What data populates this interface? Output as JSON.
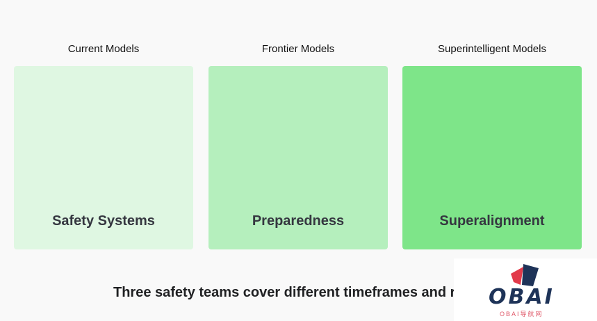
{
  "columns": [
    {
      "label": "Current Models",
      "team": "Safety Systems",
      "color": "#dff7e2"
    },
    {
      "label": "Frontier Models",
      "team": "Preparedness",
      "color": "#b5efbd"
    },
    {
      "label": "Superintelligent Models",
      "team": "Superalignment",
      "color": "#7ee589"
    }
  ],
  "caption": "Three safety teams cover different timeframes and r",
  "watermark": {
    "logo": "OBAI",
    "subtitle": "OBAI导航网"
  }
}
